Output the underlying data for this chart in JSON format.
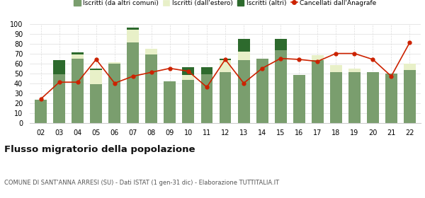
{
  "years": [
    "02",
    "03",
    "04",
    "05",
    "06",
    "07",
    "08",
    "09",
    "10",
    "11",
    "12",
    "13",
    "14",
    "15",
    "16",
    "17",
    "18",
    "19",
    "20",
    "21",
    "22"
  ],
  "iscritti_altri_comuni": [
    23,
    49,
    65,
    39,
    60,
    81,
    69,
    42,
    43,
    49,
    51,
    63,
    65,
    73,
    48,
    63,
    51,
    51,
    51,
    50,
    53
  ],
  "iscritti_estero": [
    0,
    0,
    4,
    14,
    1,
    13,
    6,
    0,
    5,
    0,
    12,
    9,
    0,
    0,
    0,
    5,
    7,
    4,
    0,
    0,
    7
  ],
  "iscritti_altri": [
    0,
    14,
    2,
    2,
    0,
    2,
    0,
    0,
    8,
    7,
    2,
    13,
    0,
    12,
    0,
    0,
    0,
    0,
    0,
    0,
    0
  ],
  "cancellati": [
    24,
    41,
    41,
    64,
    40,
    47,
    51,
    55,
    52,
    36,
    64,
    40,
    55,
    65,
    64,
    62,
    70,
    70,
    64,
    47,
    81
  ],
  "color_altri_comuni": "#7a9e6e",
  "color_estero": "#e8f0c8",
  "color_altri": "#2d6a2d",
  "color_cancellati": "#cc2200",
  "ylim": [
    0,
    100
  ],
  "yticks": [
    0,
    10,
    20,
    30,
    40,
    50,
    60,
    70,
    80,
    90,
    100
  ],
  "title": "Flusso migratorio della popolazione",
  "subtitle": "COMUNE DI SANT'ANNA ARRESI (SU) - Dati ISTAT (1 gen-31 dic) - Elaborazione TUTTITALIA.IT",
  "legend_labels": [
    "Iscritti (da altri comuni)",
    "Iscritti (dall'estero)",
    "Iscritti (altri)",
    "Cancellati dall'Anagrafe"
  ],
  "background_color": "#ffffff",
  "grid_color": "#dddddd"
}
